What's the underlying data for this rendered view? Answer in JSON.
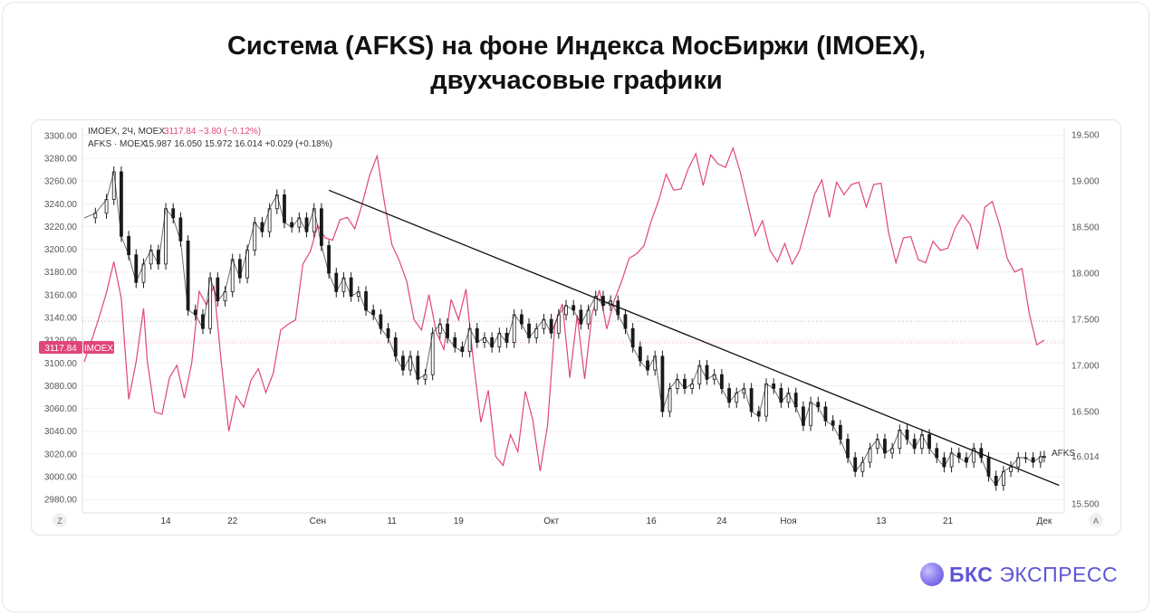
{
  "title": {
    "line1": "Система (AFKS) на фоне Индекса МосБиржи (IMOEX),",
    "line2": "двухчасовые графики"
  },
  "legend": {
    "imoex_label": "IMOEX, 2Ч, MOEX",
    "imoex_values": "3117.84  −3.80 (−0.12%)",
    "afks_label": "AFKS · MOEX",
    "afks_values": "15.987  16.050  15.972  16.014  +0.029 (+0.18%)"
  },
  "badges": {
    "imoex_price": "3117.84",
    "imoex_name": "IMOEX",
    "afks_name": "AFKS",
    "afks_price": "16.014"
  },
  "controls": {
    "left": "Z",
    "right": "A"
  },
  "logo": {
    "bks": "БКС",
    "express": "ЭКСПРЕСС"
  },
  "colors": {
    "imoex_line": "#e0457b",
    "candles": "#1a1a1a",
    "trendline": "#111111",
    "grid": "#f0f0f3",
    "axis_text": "#555555",
    "brand": "#5f55d8"
  },
  "chart_data": {
    "type": "line",
    "x_ticks": [
      "14",
      "22",
      "Сен",
      "11",
      "19",
      "Окт",
      "16",
      "24",
      "Ноя",
      "13",
      "21",
      "Дек"
    ],
    "left_axis": {
      "label": "IMOEX",
      "ylim": [
        2973,
        3307
      ],
      "ticks": [
        "3300.00",
        "3280.00",
        "3260.00",
        "3240.00",
        "3220.00",
        "3200.00",
        "3180.00",
        "3160.00",
        "3140.00",
        "3120.00",
        "3100.00",
        "3080.00",
        "3060.00",
        "3040.00",
        "3020.00",
        "3000.00",
        "2980.00"
      ]
    },
    "right_axis": {
      "label": "AFKS",
      "ylim": [
        15.46,
        19.58
      ],
      "ticks": [
        "19.500",
        "19.000",
        "18.500",
        "18.000",
        "17.500",
        "17.000",
        "16.500",
        "16.014",
        "15.500"
      ]
    },
    "imoex_last": 3117.84,
    "afks_last": 16.014,
    "dotted_levels": [
      {
        "axis": "left",
        "value": 3117.84
      },
      {
        "axis": "right",
        "value": 17.48
      }
    ],
    "series": [
      {
        "name": "IMOEX",
        "axis": "left",
        "style": "line",
        "x_index": [
          0,
          2,
          4,
          6,
          8,
          10,
          12,
          14,
          16,
          17,
          19,
          21,
          23,
          25,
          27,
          29,
          31,
          33,
          35,
          37,
          39,
          41,
          43,
          45,
          47,
          49,
          51,
          53,
          55,
          57,
          59,
          61,
          63,
          65,
          67,
          69,
          71,
          73,
          75,
          77,
          79,
          81,
          83,
          85,
          87,
          89,
          91,
          93,
          95,
          97,
          99,
          101,
          103,
          105,
          107,
          109,
          111,
          113,
          115,
          117,
          119,
          121,
          123,
          125,
          127,
          129,
          131,
          133,
          135,
          137,
          139,
          141,
          143,
          145,
          147,
          149,
          151,
          153,
          155,
          157,
          159,
          161,
          163,
          165,
          167,
          169,
          171,
          173,
          175,
          177,
          179,
          181,
          183,
          185,
          187,
          189,
          191,
          193,
          195,
          197,
          199,
          201,
          203,
          205,
          207,
          209,
          211,
          213,
          215,
          217,
          219,
          221,
          223,
          225,
          227,
          229,
          231,
          233,
          235,
          237,
          239,
          241,
          243,
          245,
          247,
          249,
          251,
          253,
          255,
          257,
          259
        ],
        "values": [
          3101,
          3120,
          3140,
          3162,
          3189,
          3157,
          3068,
          3101,
          3148,
          3102,
          3057,
          3055,
          3087,
          3098,
          3069,
          3100,
          3163,
          3151,
          3168,
          3100,
          3040,
          3071,
          3061,
          3085,
          3095,
          3074,
          3091,
          3129,
          3134,
          3138,
          3187,
          3198,
          3221,
          3210,
          3208,
          3226,
          3228,
          3218,
          3240,
          3265,
          3282,
          3241,
          3204,
          3190,
          3172,
          3138,
          3129,
          3160,
          3127,
          3112,
          3156,
          3138,
          3165,
          3101,
          3048,
          3076,
          3018,
          3010,
          3037,
          3022,
          3075,
          3050,
          3005,
          3045,
          3134,
          3152,
          3087,
          3142,
          3086,
          3143,
          3164,
          3130,
          3155,
          3172,
          3192,
          3196,
          3203,
          3225,
          3243,
          3266,
          3252,
          3253,
          3271,
          3284,
          3256,
          3283,
          3275,
          3272,
          3289,
          3268,
          3240,
          3212,
          3225,
          3199,
          3189,
          3205,
          3187,
          3199,
          3223,
          3248,
          3261,
          3228,
          3259,
          3248,
          3257,
          3259,
          3237,
          3257,
          3258,
          3215,
          3188,
          3210,
          3211,
          3191,
          3188,
          3207,
          3199,
          3201,
          3219,
          3230,
          3222,
          3200,
          3237,
          3242,
          3221,
          3192,
          3180,
          3183,
          3143,
          3116,
          3120
        ],
        "note_x": "x_index on 0..260 bar grid spanning the plot from late July to early December"
      },
      {
        "name": "AFKS",
        "axis": "right",
        "style": "candles (drawn as close line)",
        "x_index": [
          0,
          3,
          6,
          8,
          10,
          12,
          14,
          16,
          18,
          20,
          22,
          24,
          26,
          28,
          30,
          32,
          34,
          36,
          38,
          40,
          42,
          44,
          46,
          48,
          50,
          52,
          54,
          56,
          58,
          60,
          62,
          64,
          66,
          68,
          70,
          72,
          74,
          76,
          78,
          80,
          82,
          84,
          86,
          88,
          90,
          92,
          94,
          96,
          98,
          100,
          102,
          104,
          106,
          108,
          110,
          112,
          114,
          116,
          118,
          120,
          122,
          124,
          126,
          128,
          130,
          132,
          134,
          136,
          138,
          140,
          142,
          144,
          146,
          148,
          150,
          152,
          154,
          156,
          158,
          160,
          162,
          164,
          166,
          168,
          170,
          172,
          174,
          176,
          178,
          180,
          182,
          184,
          186,
          188,
          190,
          192,
          194,
          196,
          198,
          200,
          202,
          204,
          206,
          208,
          210,
          212,
          214,
          216,
          218,
          220,
          222,
          224,
          226,
          228,
          230,
          232,
          234,
          236,
          238,
          240,
          242,
          244,
          246,
          248,
          250,
          252,
          254,
          256,
          258,
          259
        ],
        "values": [
          18.6,
          18.65,
          18.8,
          19.1,
          18.4,
          18.2,
          17.9,
          18.1,
          18.25,
          18.1,
          18.7,
          18.6,
          18.35,
          17.6,
          17.55,
          17.4,
          17.95,
          17.7,
          17.8,
          18.15,
          17.95,
          18.25,
          18.55,
          18.45,
          18.7,
          18.85,
          18.55,
          18.5,
          18.6,
          18.45,
          18.7,
          18.3,
          18.0,
          17.8,
          17.95,
          17.75,
          17.8,
          17.6,
          17.55,
          17.4,
          17.3,
          17.1,
          16.95,
          17.1,
          16.85,
          16.9,
          17.35,
          17.45,
          17.3,
          17.2,
          17.15,
          17.4,
          17.25,
          17.3,
          17.2,
          17.35,
          17.25,
          17.55,
          17.45,
          17.3,
          17.4,
          17.5,
          17.35,
          17.55,
          17.65,
          17.6,
          17.45,
          17.6,
          17.75,
          17.65,
          17.7,
          17.55,
          17.4,
          17.2,
          17.05,
          16.95,
          17.1,
          16.5,
          16.75,
          16.85,
          16.75,
          16.8,
          17.0,
          16.85,
          16.9,
          16.75,
          16.6,
          16.7,
          16.75,
          16.5,
          16.45,
          16.8,
          16.75,
          16.6,
          16.7,
          16.55,
          16.35,
          16.6,
          16.55,
          16.4,
          16.35,
          16.2,
          16.0,
          15.85,
          15.95,
          16.1,
          16.2,
          16.05,
          16.1,
          16.3,
          16.2,
          16.1,
          16.25,
          16.1,
          16.0,
          15.9,
          16.05,
          16.0,
          15.95,
          16.1,
          16.0,
          15.8,
          15.7,
          15.85,
          15.9,
          16.0,
          16.0,
          15.95,
          16.01,
          16.014
        ]
      }
    ],
    "trendline": {
      "axis": "right",
      "from": {
        "x_index": 66,
        "value": 18.9
      },
      "to": {
        "x_index": 263,
        "value": 15.7
      }
    }
  }
}
